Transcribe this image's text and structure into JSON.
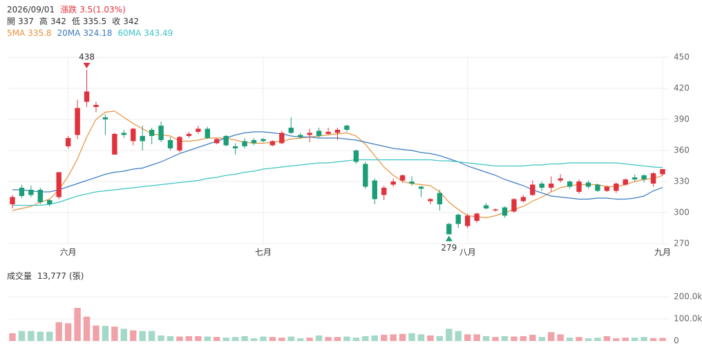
{
  "chart_data": {
    "type": "candlestick",
    "header": {
      "date": "2026/09/01",
      "change_label": "漲跌",
      "change": "3.5(1.03%)",
      "ohlc_labels": [
        "開",
        "高",
        "低",
        "收"
      ]
    },
    "x": [
      null,
      null,
      null,
      null,
      null,
      null,
      "六月",
      null,
      null,
      null,
      null,
      null,
      null,
      null,
      null,
      null,
      null,
      null,
      null,
      null,
      null,
      null,
      null,
      null,
      null,
      null,
      null,
      "七月",
      null,
      null,
      null,
      null,
      null,
      null,
      null,
      null,
      null,
      null,
      null,
      null,
      null,
      null,
      null,
      null,
      null,
      null,
      null,
      null,
      null,
      "八月",
      null,
      null,
      null,
      null,
      null,
      null,
      null,
      null,
      null,
      null,
      null,
      null,
      null,
      null,
      null,
      null,
      null,
      null,
      null,
      null,
      "九月"
    ],
    "open": [
      308,
      324,
      322,
      322,
      312,
      315,
      364,
      375,
      407,
      402,
      392,
      356,
      377,
      369,
      374,
      380,
      384,
      370,
      360,
      374,
      378,
      381,
      367,
      374,
      364,
      369,
      370,
      371,
      365,
      367,
      382,
      375,
      375,
      379,
      376,
      377,
      384,
      360,
      347,
      331,
      317,
      327,
      331,
      330,
      325,
      311,
      319,
      289,
      298,
      287,
      292,
      307,
      302,
      305,
      301,
      311,
      317,
      328,
      324,
      331,
      330,
      320,
      329,
      327,
      321,
      321,
      327,
      334,
      336,
      328,
      337
    ],
    "high": [
      317,
      327,
      326,
      324,
      313,
      339,
      374,
      409,
      438,
      407,
      395,
      377,
      380,
      382,
      384,
      382,
      388,
      373,
      374,
      378,
      384,
      383,
      372,
      375,
      367,
      372,
      372,
      372,
      370,
      379,
      392,
      377,
      381,
      382,
      382,
      382,
      385,
      361,
      349,
      333,
      326,
      333,
      337,
      335,
      326,
      314,
      322,
      290,
      299,
      299,
      300,
      309,
      304,
      306,
      314,
      317,
      331,
      330,
      335,
      337,
      331,
      332,
      331,
      328,
      326,
      329,
      333,
      337,
      337,
      339,
      342
    ],
    "low": [
      304,
      314,
      315,
      308,
      306,
      313,
      362,
      371,
      402,
      397,
      375,
      356,
      372,
      365,
      360,
      366,
      368,
      360,
      358,
      372,
      376,
      371,
      366,
      364,
      356,
      362,
      365,
      368,
      364,
      366,
      376,
      371,
      368,
      372,
      375,
      370,
      378,
      347,
      323,
      308,
      312,
      325,
      329,
      326,
      315,
      308,
      302,
      279,
      285,
      285,
      290,
      303,
      301,
      295,
      300,
      310,
      316,
      321,
      320,
      329,
      323,
      318,
      323,
      320,
      320,
      319,
      326,
      330,
      329,
      325,
      335.5
    ],
    "close": [
      315,
      316,
      317,
      310,
      308,
      339,
      372,
      401,
      417,
      404,
      390,
      376,
      375,
      381,
      369,
      374,
      370,
      362,
      373,
      376,
      381,
      372,
      371,
      365,
      362,
      364,
      367,
      369,
      369,
      377,
      377,
      373,
      377,
      374,
      378,
      380,
      380,
      349,
      325,
      313,
      324,
      330,
      336,
      328,
      323,
      313,
      308,
      279,
      289,
      297,
      299,
      304,
      303,
      297,
      313,
      315,
      327,
      324,
      328,
      333,
      325,
      330,
      325,
      321,
      325,
      328,
      332,
      332,
      332,
      338,
      342
    ],
    "up_color": "#e0323c",
    "down_color": "#1b9e77",
    "series": [
      {
        "name": "5MA",
        "color": "#e8913a",
        "values": [
          302,
          304,
          306,
          310,
          313,
          322,
          335,
          352,
          373,
          390,
          397,
          398,
          392,
          386,
          381,
          376,
          375,
          374,
          369,
          369,
          370,
          372,
          372,
          372,
          370,
          368,
          367,
          367,
          368,
          369,
          371,
          372,
          373,
          374,
          375,
          376,
          377,
          374,
          366,
          355,
          344,
          336,
          330,
          328,
          327,
          326,
          320,
          310,
          303,
          297,
          296,
          295,
          297,
          300,
          303,
          306,
          311,
          315,
          320,
          324,
          326,
          327,
          327,
          327,
          325,
          325,
          327,
          330,
          332,
          333,
          335.8
        ]
      },
      {
        "name": "20MA",
        "color": "#3a7bbf",
        "values": [
          322,
          322,
          321,
          320,
          320,
          322,
          325,
          328,
          331,
          334,
          337,
          339,
          340,
          342,
          343,
          346,
          349,
          353,
          357,
          360,
          363,
          366,
          369,
          372,
          375,
          377,
          378,
          378,
          377,
          376,
          374,
          373,
          373,
          372,
          372,
          372,
          371,
          370,
          368,
          366,
          364,
          362,
          361,
          360,
          358,
          357,
          355,
          352,
          349,
          345,
          342,
          339,
          336,
          332,
          329,
          326,
          322,
          319,
          316,
          315,
          314,
          313,
          313,
          314,
          314,
          313,
          313,
          314,
          316,
          321,
          324.18
        ]
      },
      {
        "name": "60MA",
        "color": "#3cc3c3",
        "values": [
          307,
          307,
          307,
          307,
          308,
          310,
          313,
          316,
          318,
          320,
          321,
          322,
          323,
          324,
          325,
          326,
          327,
          328,
          329,
          330,
          331,
          333,
          334,
          336,
          337,
          339,
          340,
          342,
          343,
          344,
          345,
          346,
          347,
          348,
          348,
          349,
          350,
          351,
          351,
          351,
          351,
          351,
          351,
          351,
          351,
          351,
          350,
          350,
          349,
          348,
          347,
          346,
          345,
          345,
          345,
          345,
          346,
          346,
          347,
          347,
          348,
          348,
          348,
          348,
          348,
          348,
          347,
          346,
          345,
          344,
          343.49
        ]
      }
    ],
    "ylim": [
      270,
      450
    ],
    "yticks": [
      270,
      300,
      330,
      360,
      390,
      420,
      450
    ],
    "volume_title": "成交量",
    "volume_unit": "(張)",
    "volume_readout": {
      "value": 13777,
      "label": "13,777"
    },
    "volume": [
      35000,
      45000,
      45000,
      42000,
      42000,
      85000,
      80000,
      150000,
      110000,
      70000,
      68000,
      65000,
      55000,
      48000,
      45000,
      45000,
      25000,
      22000,
      20000,
      22000,
      22000,
      20000,
      18000,
      15000,
      18000,
      22000,
      12000,
      20000,
      18000,
      15000,
      20000,
      12000,
      15000,
      25000,
      18000,
      18000,
      20000,
      15000,
      22000,
      25000,
      28000,
      30000,
      32000,
      35000,
      30000,
      25000,
      22000,
      55000,
      45000,
      30000,
      30000,
      22000,
      18000,
      22000,
      20000,
      22000,
      28000,
      18000,
      40000,
      30000,
      15000,
      18000,
      12000,
      15000,
      22000,
      12000,
      15000,
      15000,
      18000,
      13000,
      13777
    ],
    "volume_up_color": "#f0a2a8",
    "volume_down_color": "#a3d9c6",
    "volume_ylim": [
      0,
      200000
    ],
    "volume_yticks": [
      0,
      {
        "value": 100000,
        "label": "100.0k"
      },
      {
        "value": 200000,
        "label": "200.0k"
      }
    ],
    "grid": true
  }
}
